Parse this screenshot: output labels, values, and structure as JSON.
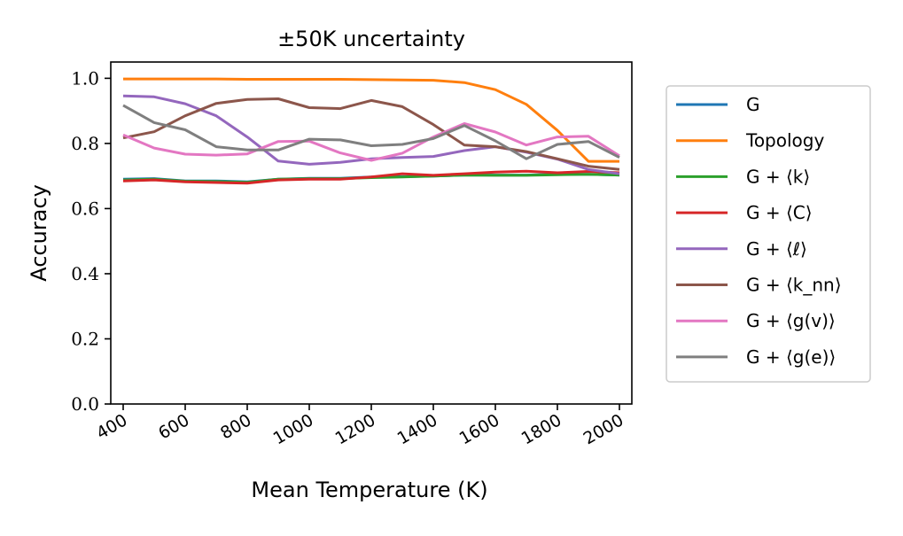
{
  "chart_data": {
    "type": "line",
    "title": "±50K uncertainty",
    "xlabel": "Mean Temperature (K)",
    "ylabel": "Accuracy",
    "xlim": [
      360,
      2040
    ],
    "ylim": [
      0.0,
      1.05
    ],
    "xticks": [
      400,
      600,
      800,
      1000,
      1200,
      1400,
      1600,
      1800,
      2000
    ],
    "xtick_labels": [
      "400",
      "600",
      "800",
      "1000",
      "1200",
      "1400",
      "1600",
      "1800",
      "2000"
    ],
    "yticks": [
      0.0,
      0.2,
      0.4,
      0.6,
      0.8,
      1.0
    ],
    "ytick_labels": [
      "0.0",
      "0.2",
      "0.4",
      "0.6",
      "0.8",
      "1.0"
    ],
    "grid": false,
    "legend_position": "outside-right",
    "x": [
      400,
      500,
      600,
      700,
      800,
      900,
      1000,
      1100,
      1200,
      1300,
      1400,
      1500,
      1600,
      1700,
      1800,
      1900,
      2000
    ],
    "series": [
      {
        "name": "G",
        "color": "#1f77b4",
        "values": [
          0.69,
          0.692,
          0.685,
          0.685,
          0.682,
          0.69,
          0.693,
          0.693,
          0.697,
          0.698,
          0.7,
          0.703,
          0.703,
          0.703,
          0.705,
          0.705,
          0.703
        ]
      },
      {
        "name": "Topology",
        "color": "#ff7f0e",
        "values": [
          0.998,
          0.998,
          0.998,
          0.998,
          0.997,
          0.997,
          0.997,
          0.997,
          0.996,
          0.995,
          0.994,
          0.987,
          0.965,
          0.92,
          0.84,
          0.745,
          0.745
        ]
      },
      {
        "name": "G + ⟨k⟩",
        "color": "#2ca02c",
        "values": [
          0.688,
          0.69,
          0.684,
          0.683,
          0.681,
          0.69,
          0.692,
          0.692,
          0.695,
          0.697,
          0.7,
          0.703,
          0.702,
          0.702,
          0.704,
          0.705,
          0.703
        ]
      },
      {
        "name": "G + ⟨C⟩",
        "color": "#d62728",
        "values": [
          0.685,
          0.688,
          0.682,
          0.68,
          0.678,
          0.688,
          0.69,
          0.69,
          0.697,
          0.707,
          0.702,
          0.707,
          0.712,
          0.715,
          0.71,
          0.714,
          0.71
        ]
      },
      {
        "name": "G + ⟨ℓ⟩",
        "color": "#9467bd",
        "values": [
          0.946,
          0.943,
          0.922,
          0.885,
          0.82,
          0.746,
          0.736,
          0.742,
          0.753,
          0.757,
          0.76,
          0.778,
          0.79,
          0.773,
          0.752,
          0.72,
          0.707
        ]
      },
      {
        "name": "G + ⟨k_nn⟩",
        "color": "#8c564b",
        "values": [
          0.817,
          0.836,
          0.885,
          0.923,
          0.935,
          0.937,
          0.91,
          0.907,
          0.932,
          0.913,
          0.858,
          0.795,
          0.79,
          0.775,
          0.753,
          0.73,
          0.72
        ]
      },
      {
        "name": "G + ⟨g(v)⟩",
        "color": "#e377c2",
        "values": [
          0.826,
          0.786,
          0.767,
          0.764,
          0.768,
          0.806,
          0.807,
          0.771,
          0.748,
          0.77,
          0.82,
          0.861,
          0.835,
          0.795,
          0.82,
          0.822,
          0.762
        ]
      },
      {
        "name": "G + ⟨g(e)⟩",
        "color": "#7f7f7f",
        "values": [
          0.917,
          0.864,
          0.842,
          0.79,
          0.78,
          0.78,
          0.813,
          0.811,
          0.793,
          0.797,
          0.815,
          0.855,
          0.808,
          0.753,
          0.797,
          0.806,
          0.757
        ]
      }
    ]
  }
}
